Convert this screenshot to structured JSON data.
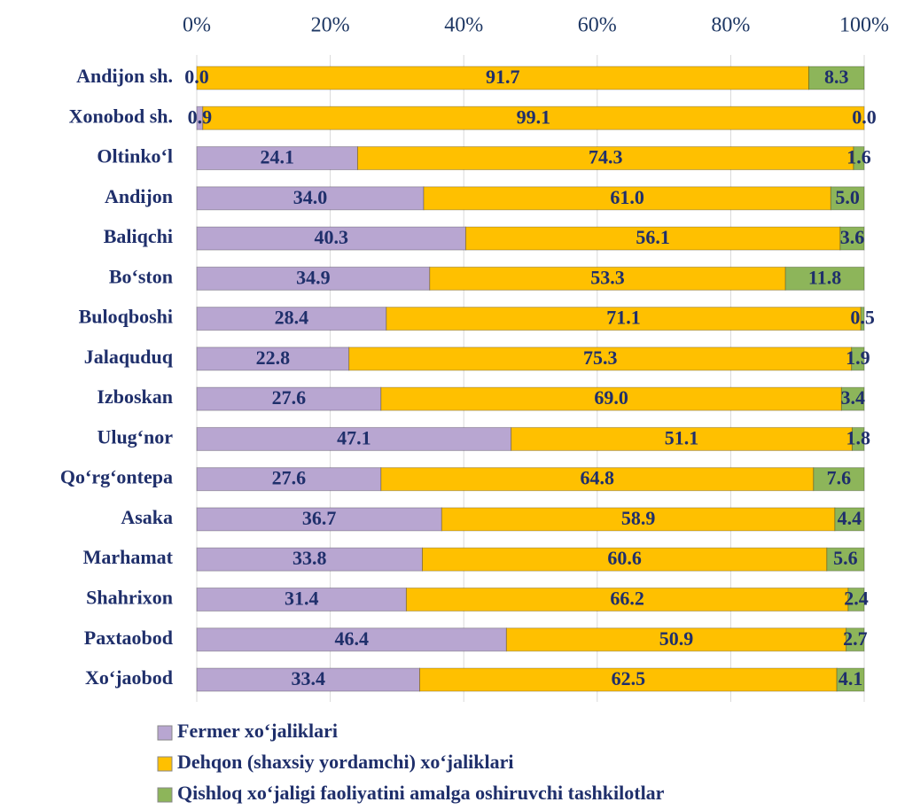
{
  "chart_data": {
    "type": "stacked-barh",
    "categories": [
      "Andijon sh.",
      "Xonobod sh.",
      "Oltinko‘l",
      "Andijon",
      "Baliqchi",
      "Bo‘ston",
      "Buloqboshi",
      "Jalaquduq",
      "Izboskan",
      "Ulug‘nor",
      "Qo‘rg‘ontepa",
      "Asaka",
      "Marhamat",
      "Shahrixon",
      "Paxtaobod",
      "Xo‘jaobod"
    ],
    "series": [
      {
        "name": "Fermer xo‘jaliklari",
        "color": "#b8a6d1",
        "values": [
          0.0,
          0.9,
          24.1,
          34.0,
          40.3,
          34.9,
          28.4,
          22.8,
          27.6,
          47.1,
          27.6,
          36.7,
          33.8,
          31.4,
          46.4,
          33.4
        ],
        "value_labels": [
          "0.0",
          "0.9",
          "24.1",
          "34.0",
          "40.3",
          "34.9",
          "28.4",
          "22.8",
          "27.6",
          "47.1",
          "27.6",
          "36.7",
          "33.8",
          "31.4",
          "46.4",
          "33.4"
        ]
      },
      {
        "name": "Dehqon (shaxsiy yordamchi) xo‘jaliklari",
        "color": "#ffc000",
        "values": [
          91.7,
          99.1,
          74.3,
          61.0,
          56.1,
          53.3,
          71.1,
          75.3,
          69.0,
          51.1,
          64.8,
          58.9,
          60.6,
          66.2,
          50.9,
          62.5
        ],
        "value_labels": [
          "91.7",
          "99.1",
          "74.3",
          "61.0",
          "56.1",
          "53.3",
          "71.1",
          "75.3",
          "69.0",
          "51.1",
          "64.8",
          "58.9",
          "60.6",
          "66.2",
          "50.9",
          "62.5"
        ]
      },
      {
        "name": "Qishloq xo‘jaligi faoliyatini amalga oshiruvchi tashkilotlar",
        "color": "#8db55a",
        "values": [
          8.3,
          0.0,
          1.6,
          5.0,
          3.6,
          11.8,
          0.5,
          1.9,
          3.4,
          1.8,
          7.6,
          4.4,
          5.6,
          2.4,
          2.7,
          4.1
        ],
        "value_labels": [
          "8.3",
          "0.0",
          "1.6",
          "5.0",
          "3.6",
          "11.8",
          "0.5",
          "1.9",
          "3.4",
          "1.8",
          "7.6",
          "4.4",
          "5.6",
          "2.4",
          "2.7",
          "4.1"
        ]
      }
    ],
    "xlim": [
      0,
      100
    ],
    "xticks": [
      {
        "value": 0,
        "label": "0%"
      },
      {
        "value": 20,
        "label": "20%"
      },
      {
        "value": 40,
        "label": "40%"
      },
      {
        "value": 60,
        "label": "60%"
      },
      {
        "value": 80,
        "label": "80%"
      },
      {
        "value": 100,
        "label": "100%"
      }
    ],
    "grid": true
  }
}
